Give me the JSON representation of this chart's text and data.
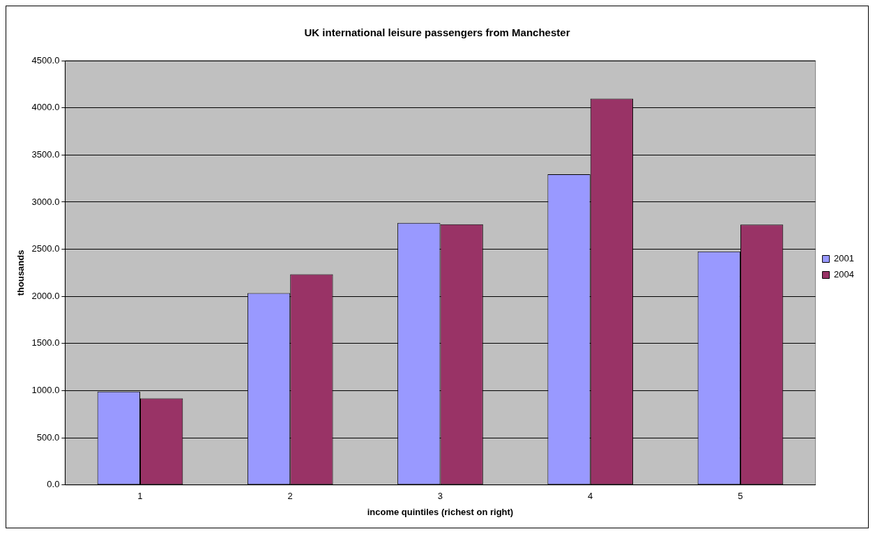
{
  "chart_data": {
    "type": "bar",
    "title": "UK international leisure passengers from Manchester",
    "xlabel": "income quintiles (richest on right)",
    "ylabel": "thousands",
    "categories": [
      "1",
      "2",
      "3",
      "4",
      "5"
    ],
    "series": [
      {
        "name": "2001",
        "color": "#9999ff",
        "values": [
          990,
          2035,
          2780,
          3295,
          2477
        ]
      },
      {
        "name": "2004",
        "color": "#993366",
        "values": [
          918,
          2235,
          2765,
          4098,
          2762
        ]
      }
    ],
    "ylim": [
      0,
      4500
    ],
    "yticks": [
      {
        "value": 0,
        "label": "0.0"
      },
      {
        "value": 500,
        "label": "500.0"
      },
      {
        "value": 1000,
        "label": "1000.0"
      },
      {
        "value": 1500,
        "label": "1500.0"
      },
      {
        "value": 2000,
        "label": "2000.0"
      },
      {
        "value": 2500,
        "label": "2500.0"
      },
      {
        "value": 3000,
        "label": "3000.0"
      },
      {
        "value": 3500,
        "label": "3500.0"
      },
      {
        "value": 4000,
        "label": "4000.0"
      },
      {
        "value": 4500,
        "label": "4500.0"
      }
    ],
    "grid": "y",
    "legend": "right"
  }
}
